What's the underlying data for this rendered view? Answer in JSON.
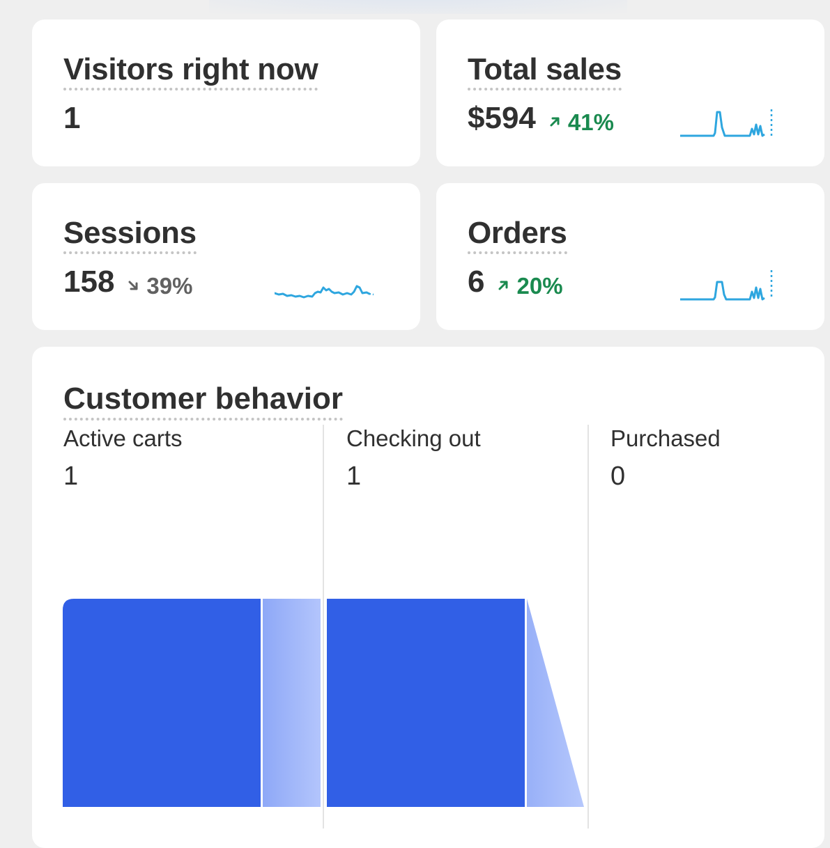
{
  "visitors": {
    "title": "Visitors right now",
    "value": "1"
  },
  "total_sales": {
    "title": "Total sales",
    "value": "$594",
    "delta": "41%",
    "delta_direction": "up",
    "arrow_icon": "arrow-up-right-icon",
    "sparkline_color": "#2ea6df"
  },
  "sessions": {
    "title": "Sessions",
    "value": "158",
    "delta": "39%",
    "delta_direction": "down",
    "arrow_icon": "arrow-down-right-icon",
    "sparkline_color": "#2ea6df"
  },
  "orders": {
    "title": "Orders",
    "value": "6",
    "delta": "20%",
    "delta_direction": "up",
    "arrow_icon": "arrow-up-right-icon",
    "sparkline_color": "#2ea6df"
  },
  "customer_behavior": {
    "title": "Customer behavior",
    "stages": [
      {
        "label": "Active carts",
        "value": "1"
      },
      {
        "label": "Checking out",
        "value": "1"
      },
      {
        "label": "Purchased",
        "value": "0"
      }
    ],
    "bar_color": "#315fe6",
    "dropoff_color": "#a8bcfb"
  },
  "colors": {
    "positive": "#1a8a4f",
    "neutral": "#616161",
    "background": "#efefef",
    "card": "#ffffff"
  }
}
